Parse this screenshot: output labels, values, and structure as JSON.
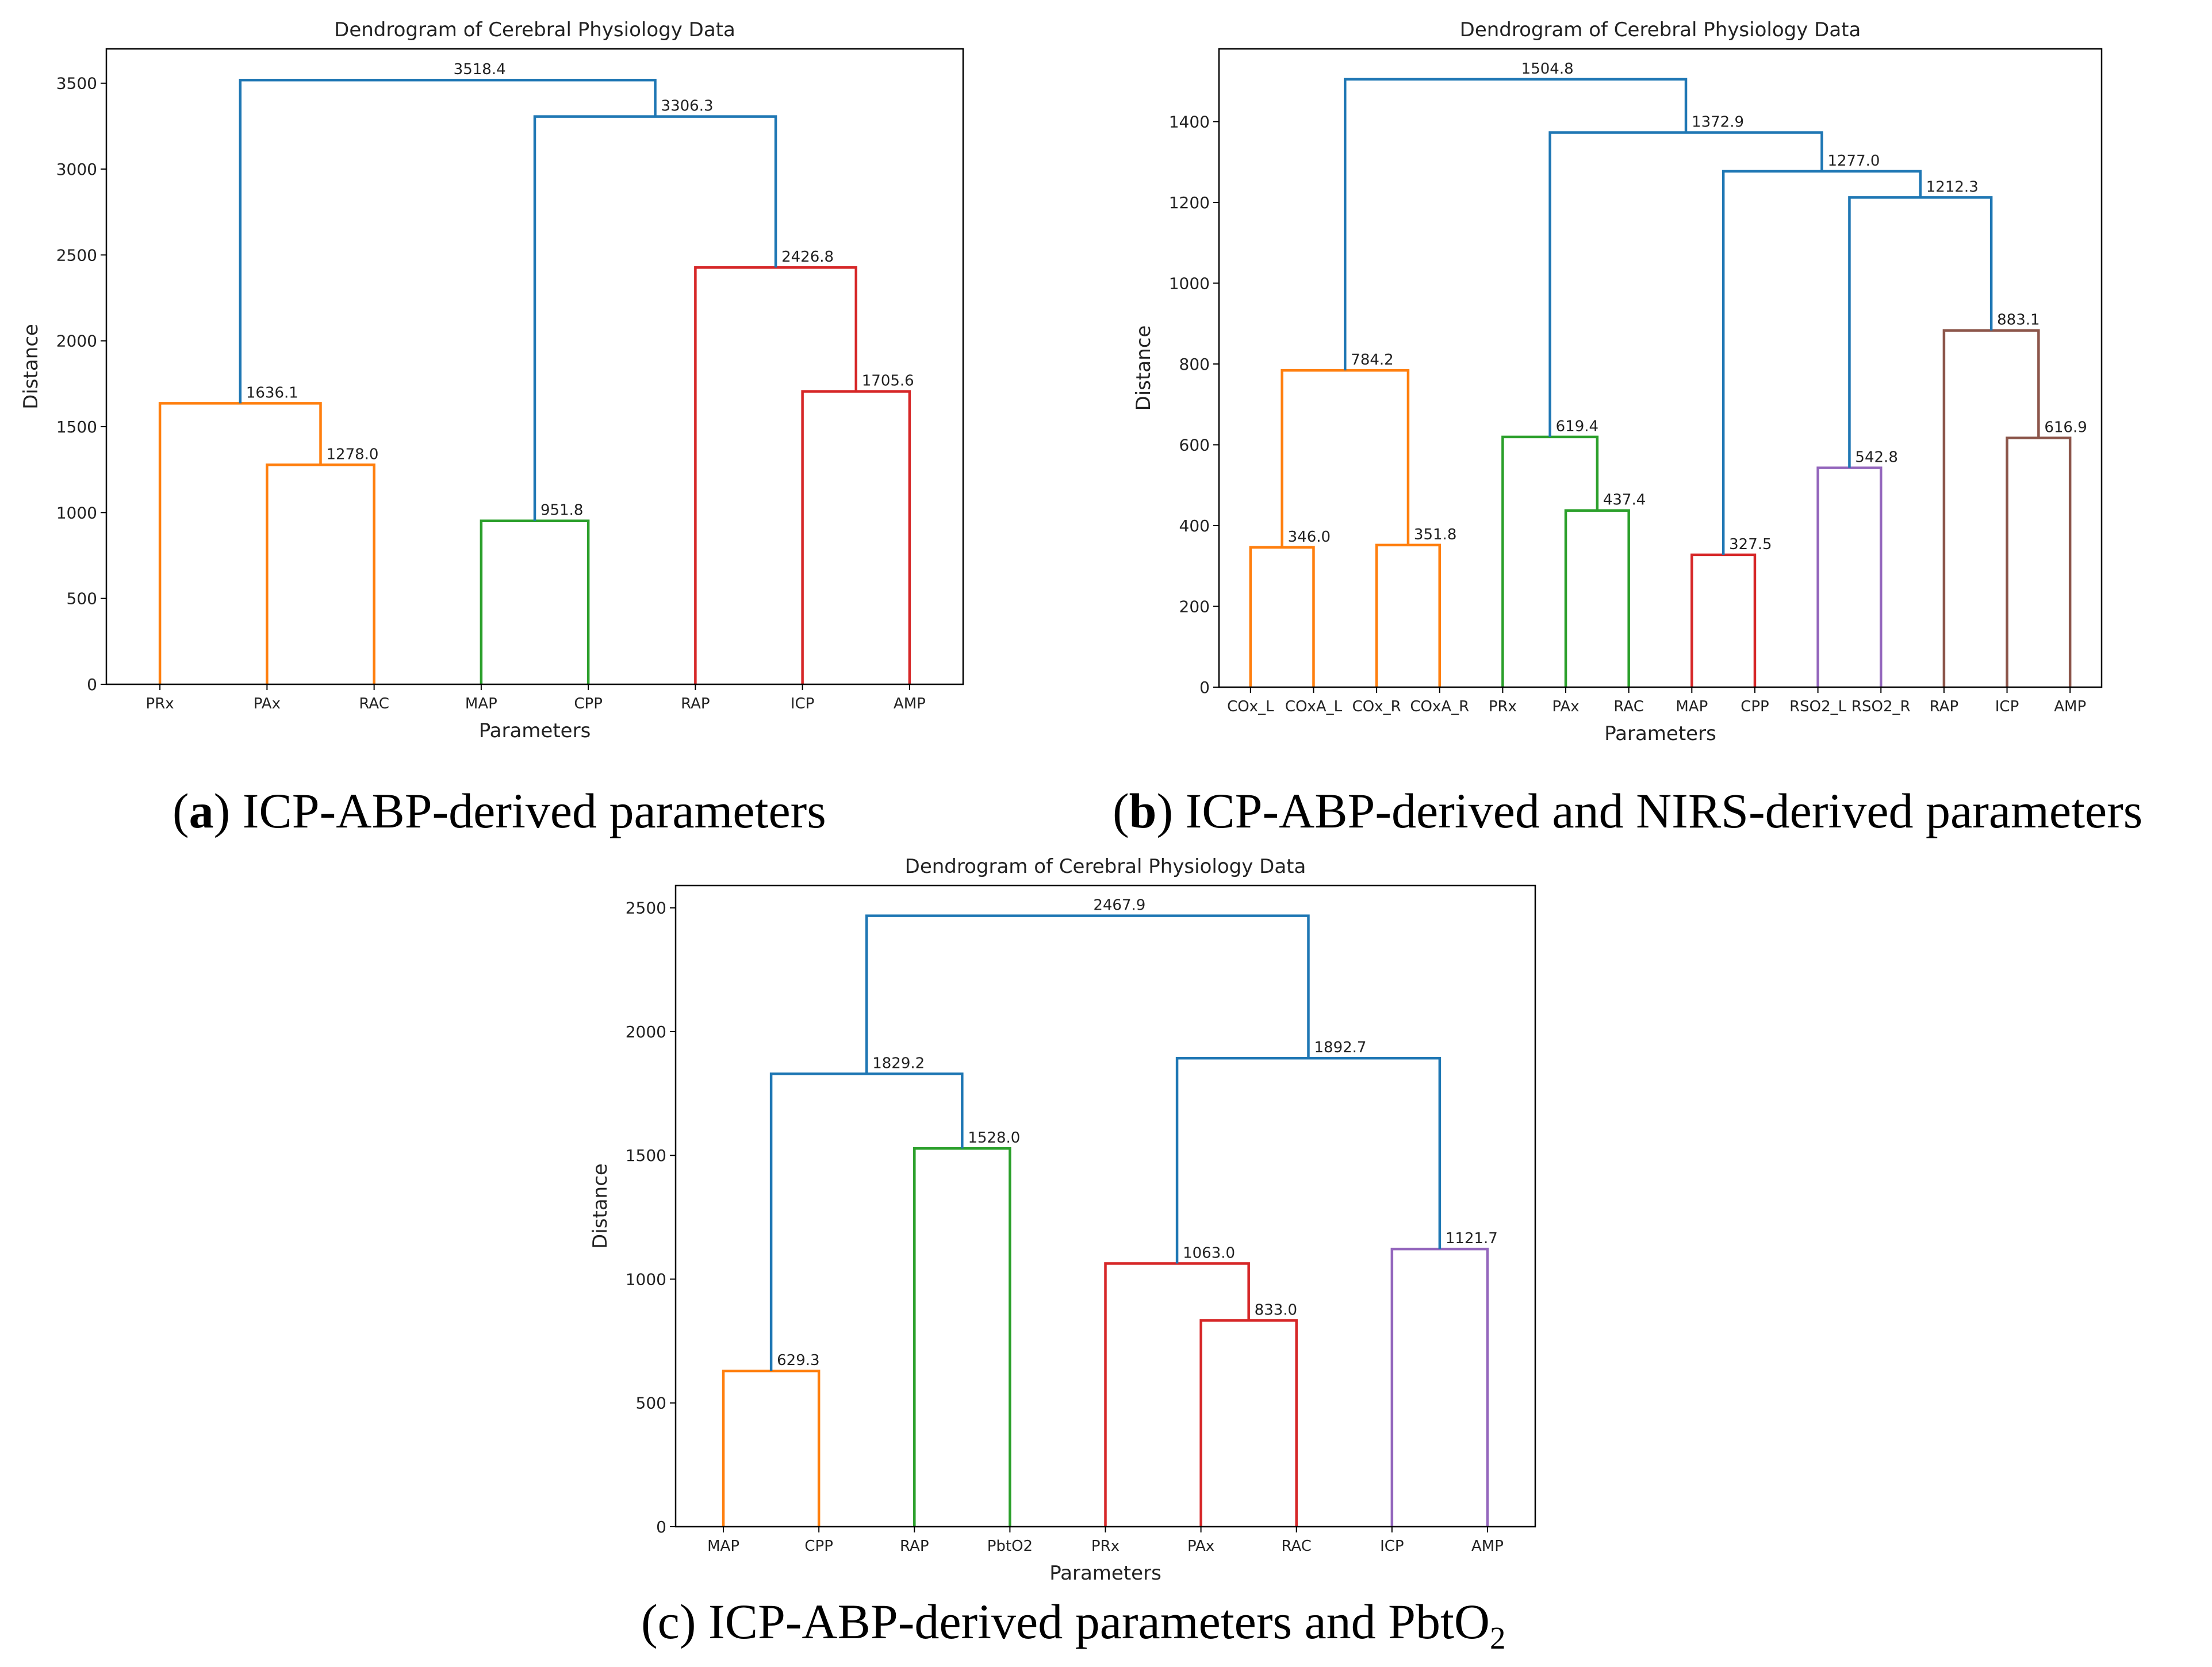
{
  "colors": {
    "blue": "#1f77b4",
    "orange": "#ff7f0e",
    "green": "#2ca02c",
    "red": "#d62728",
    "purple": "#9467bd",
    "brown": "#8c564b"
  },
  "chart_data": [
    {
      "id": "a",
      "type": "dendrogram",
      "title": "Dendrogram of Cerebral Physiology Data",
      "xlabel": "Parameters",
      "ylabel": "Distance",
      "ylim": [
        0,
        3700
      ],
      "yticks": [
        0,
        500,
        1000,
        1500,
        2000,
        2500,
        3000,
        3500
      ],
      "leaves": [
        "PRx",
        "PAx",
        "RAC",
        "MAP",
        "CPP",
        "RAP",
        "ICP",
        "AMP"
      ],
      "merges": [
        {
          "left": "L1",
          "right": "L2",
          "height": 1278.0,
          "label": "1278.0",
          "color": "orange"
        },
        {
          "left": "L0",
          "right": "M0",
          "height": 1636.1,
          "label": "1636.1",
          "color": "orange"
        },
        {
          "left": "L3",
          "right": "L4",
          "height": 951.8,
          "label": "951.8",
          "color": "green"
        },
        {
          "left": "L6",
          "right": "L7",
          "height": 1705.6,
          "label": "1705.6",
          "color": "red"
        },
        {
          "left": "L5",
          "right": "M3",
          "height": 2426.8,
          "label": "2426.8",
          "color": "red"
        },
        {
          "left": "M2",
          "right": "M4",
          "height": 3306.3,
          "label": "3306.3",
          "color": "blue"
        },
        {
          "left": "M1",
          "right": "M5",
          "height": 3518.4,
          "label": "3518.4",
          "color": "blue"
        }
      ]
    },
    {
      "id": "b",
      "type": "dendrogram",
      "title": "Dendrogram of Cerebral Physiology Data",
      "xlabel": "Parameters",
      "ylabel": "Distance",
      "ylim": [
        0,
        1580
      ],
      "yticks": [
        0,
        200,
        400,
        600,
        800,
        1000,
        1200,
        1400
      ],
      "leaves": [
        "COx_L",
        "COxA_L",
        "COx_R",
        "COxA_R",
        "PRx",
        "PAx",
        "RAC",
        "MAP",
        "CPP",
        "RSO2_L",
        "RSO2_R",
        "RAP",
        "ICP",
        "AMP"
      ],
      "merges": [
        {
          "left": "L0",
          "right": "L1",
          "height": 346.0,
          "label": "346.0",
          "color": "orange"
        },
        {
          "left": "L2",
          "right": "L3",
          "height": 351.8,
          "label": "351.8",
          "color": "orange"
        },
        {
          "left": "M0",
          "right": "M1",
          "height": 784.2,
          "label": "784.2",
          "color": "orange"
        },
        {
          "left": "L5",
          "right": "L6",
          "height": 437.4,
          "label": "437.4",
          "color": "green"
        },
        {
          "left": "L4",
          "right": "M3",
          "height": 619.4,
          "label": "619.4",
          "color": "green"
        },
        {
          "left": "L7",
          "right": "L8",
          "height": 327.5,
          "label": "327.5",
          "color": "red"
        },
        {
          "left": "L9",
          "right": "L10",
          "height": 542.8,
          "label": "542.8",
          "color": "purple"
        },
        {
          "left": "L12",
          "right": "L13",
          "height": 616.9,
          "label": "616.9",
          "color": "brown"
        },
        {
          "left": "L11",
          "right": "M7",
          "height": 883.1,
          "label": "883.1",
          "color": "brown"
        },
        {
          "left": "M6",
          "right": "M8",
          "height": 1212.3,
          "label": "1212.3",
          "color": "blue"
        },
        {
          "left": "M5",
          "right": "M9",
          "height": 1277.0,
          "label": "1277.0",
          "color": "blue"
        },
        {
          "left": "M4",
          "right": "M10",
          "height": 1372.9,
          "label": "1372.9",
          "color": "blue"
        },
        {
          "left": "M2",
          "right": "M11",
          "height": 1504.8,
          "label": "1504.8",
          "color": "blue"
        }
      ]
    },
    {
      "id": "c",
      "type": "dendrogram",
      "title": "Dendrogram of Cerebral Physiology Data",
      "xlabel": "Parameters",
      "ylabel": "Distance",
      "ylim": [
        0,
        2590
      ],
      "yticks": [
        0,
        500,
        1000,
        1500,
        2000,
        2500
      ],
      "leaves": [
        "MAP",
        "CPP",
        "RAP",
        "PbtO2",
        "PRx",
        "PAx",
        "RAC",
        "ICP",
        "AMP"
      ],
      "merges": [
        {
          "left": "L0",
          "right": "L1",
          "height": 629.3,
          "label": "629.3",
          "color": "orange"
        },
        {
          "left": "L2",
          "right": "L3",
          "height": 1528.0,
          "label": "1528.0",
          "color": "green"
        },
        {
          "left": "M0",
          "right": "M1",
          "height": 1829.2,
          "label": "1829.2",
          "color": "blue"
        },
        {
          "left": "L5",
          "right": "L6",
          "height": 833.0,
          "label": "833.0",
          "color": "red"
        },
        {
          "left": "L4",
          "right": "M3",
          "height": 1063.0,
          "label": "1063.0",
          "color": "red"
        },
        {
          "left": "L7",
          "right": "L8",
          "height": 1121.7,
          "label": "1121.7",
          "color": "purple"
        },
        {
          "left": "M4",
          "right": "M5",
          "height": 1892.7,
          "label": "1892.7",
          "color": "blue"
        },
        {
          "left": "M2",
          "right": "M6",
          "height": 2467.9,
          "label": "2467.9",
          "color": "blue"
        }
      ]
    }
  ],
  "captions": {
    "a": {
      "letter": "a",
      "text": " ICP-ABP-derived parameters"
    },
    "b": {
      "letter": "b",
      "text": " ICP-ABP-derived and NIRS-derived parameters"
    },
    "c": {
      "letter": "c",
      "text": " ICP-ABP-derived parameters and PbtO",
      "subscript": "2"
    }
  }
}
